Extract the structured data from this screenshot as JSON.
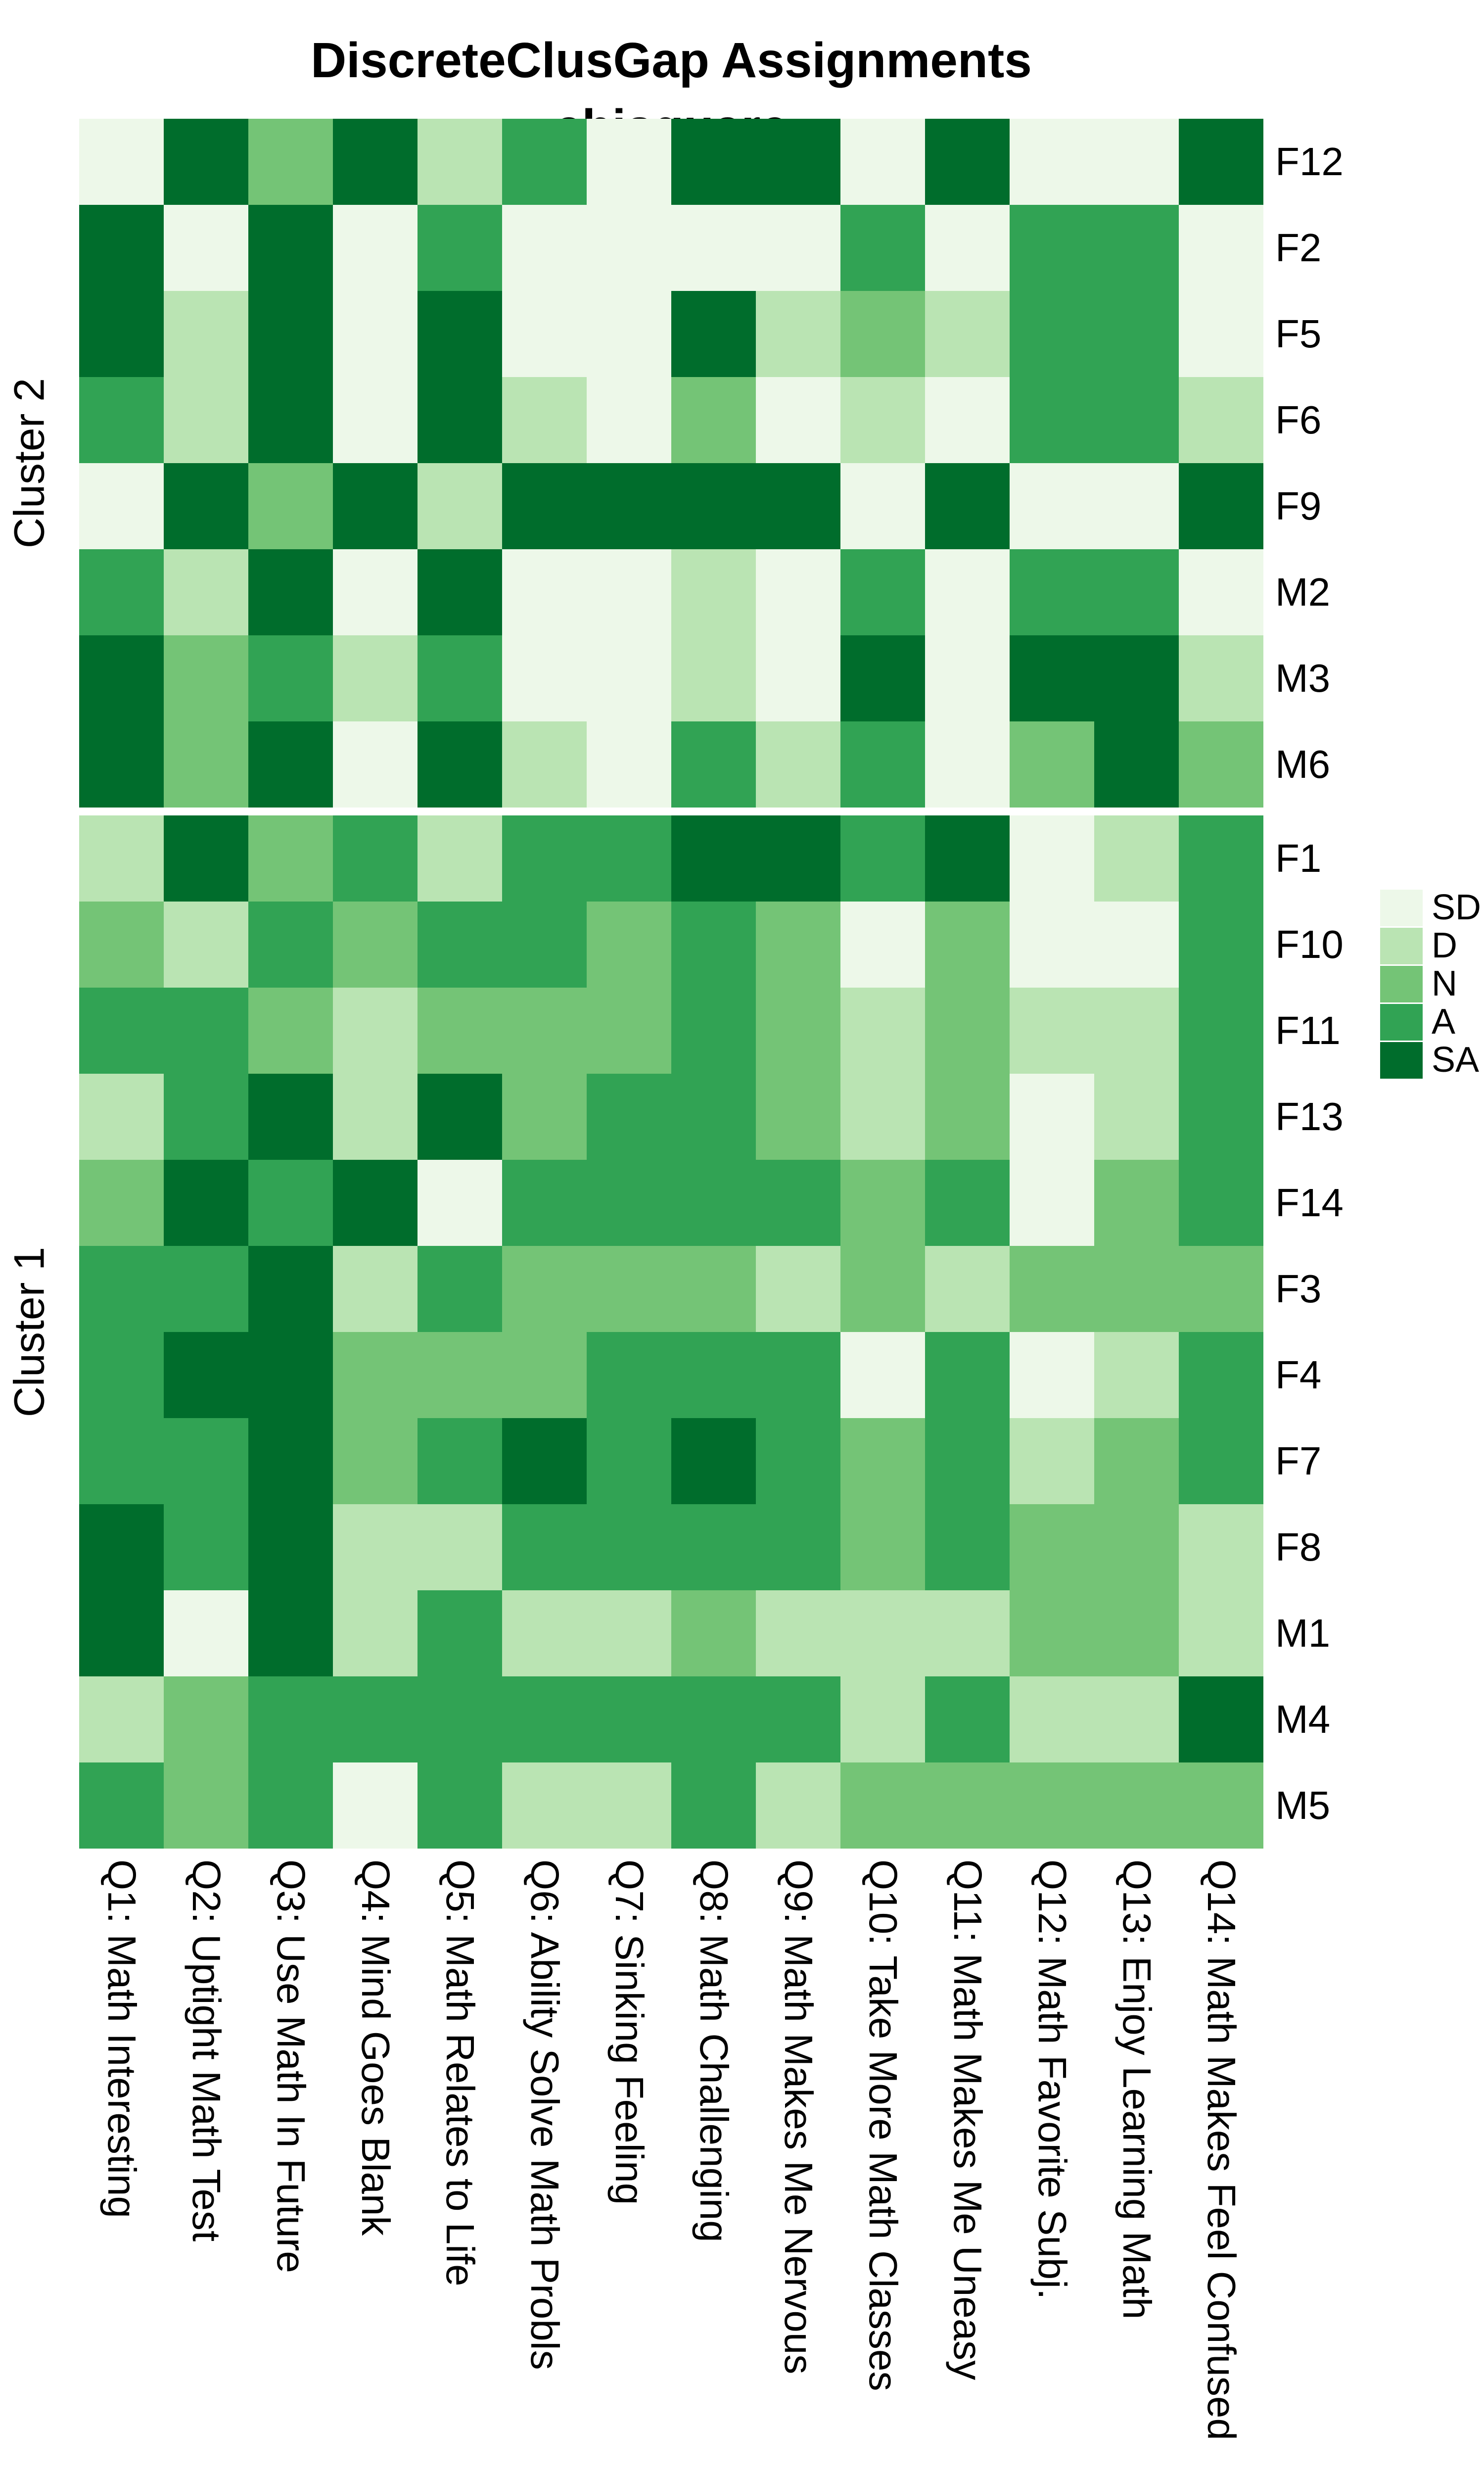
{
  "title": {
    "line1": "DiscreteClusGap Assignments",
    "line2": "chisquare"
  },
  "chart_data": {
    "type": "heatmap",
    "value_scale": "discrete Likert levels",
    "legend": {
      "position": "right",
      "levels": [
        {
          "code": "SD",
          "color": "#edf8e9"
        },
        {
          "code": "D",
          "color": "#bae4b3"
        },
        {
          "code": "N",
          "color": "#74c476"
        },
        {
          "code": "A",
          "color": "#31a354"
        },
        {
          "code": "SA",
          "color": "#006d2c"
        }
      ]
    },
    "columns": [
      "Q1: Math Interesting",
      "Q2: Uptight Math Test",
      "Q3: Use Math In Future",
      "Q4: Mind Goes Blank",
      "Q5: Math Relates to Life",
      "Q6: Ability Solve Math Probls",
      "Q7: Sinking Feeling",
      "Q8: Math Challenging",
      "Q9: Math Makes Me Nervous",
      "Q10: Take More Math Classes",
      "Q11: Math Makes Me Uneasy",
      "Q12: Math Favorite Subj.",
      "Q13: Enjoy Learning Math",
      "Q14: Math Makes Feel Confused"
    ],
    "clusters": [
      {
        "name": "Cluster 2",
        "rows": [
          {
            "id": "F12",
            "values": [
              "SD",
              "SA",
              "N",
              "SA",
              "D",
              "A",
              "SD",
              "SA",
              "SA",
              "SD",
              "SA",
              "SD",
              "SD",
              "SA"
            ]
          },
          {
            "id": "F2",
            "values": [
              "SA",
              "SD",
              "SA",
              "SD",
              "A",
              "SD",
              "SD",
              "SD",
              "SD",
              "A",
              "SD",
              "A",
              "A",
              "SD"
            ]
          },
          {
            "id": "F5",
            "values": [
              "SA",
              "D",
              "SA",
              "SD",
              "SA",
              "SD",
              "SD",
              "SA",
              "D",
              "N",
              "D",
              "A",
              "A",
              "SD"
            ]
          },
          {
            "id": "F6",
            "values": [
              "A",
              "D",
              "SA",
              "SD",
              "SA",
              "D",
              "SD",
              "N",
              "SD",
              "D",
              "SD",
              "A",
              "A",
              "D"
            ]
          },
          {
            "id": "F9",
            "values": [
              "SD",
              "SA",
              "N",
              "SA",
              "D",
              "SA",
              "SA",
              "SA",
              "SA",
              "SD",
              "SA",
              "SD",
              "SD",
              "SA"
            ]
          },
          {
            "id": "M2",
            "values": [
              "A",
              "D",
              "SA",
              "SD",
              "SA",
              "SD",
              "SD",
              "D",
              "SD",
              "A",
              "SD",
              "A",
              "A",
              "SD"
            ]
          },
          {
            "id": "M3",
            "values": [
              "SA",
              "N",
              "A",
              "D",
              "A",
              "SD",
              "SD",
              "D",
              "SD",
              "SA",
              "SD",
              "SA",
              "SA",
              "D"
            ]
          },
          {
            "id": "M6",
            "values": [
              "SA",
              "N",
              "SA",
              "SD",
              "SA",
              "D",
              "SD",
              "A",
              "D",
              "A",
              "SD",
              "N",
              "SA",
              "N"
            ]
          }
        ]
      },
      {
        "name": "Cluster 1",
        "rows": [
          {
            "id": "F1",
            "values": [
              "D",
              "SA",
              "N",
              "A",
              "D",
              "A",
              "A",
              "SA",
              "SA",
              "A",
              "SA",
              "SD",
              "D",
              "A"
            ]
          },
          {
            "id": "F10",
            "values": [
              "N",
              "D",
              "A",
              "N",
              "A",
              "A",
              "N",
              "A",
              "N",
              "SD",
              "N",
              "SD",
              "SD",
              "A"
            ]
          },
          {
            "id": "F11",
            "values": [
              "A",
              "A",
              "N",
              "D",
              "N",
              "N",
              "N",
              "A",
              "N",
              "D",
              "N",
              "D",
              "D",
              "A"
            ]
          },
          {
            "id": "F13",
            "values": [
              "D",
              "A",
              "SA",
              "D",
              "SA",
              "N",
              "A",
              "A",
              "N",
              "D",
              "N",
              "SD",
              "D",
              "A"
            ]
          },
          {
            "id": "F14",
            "values": [
              "N",
              "SA",
              "A",
              "SA",
              "SD",
              "A",
              "A",
              "A",
              "A",
              "N",
              "A",
              "SD",
              "N",
              "A"
            ]
          },
          {
            "id": "F3",
            "values": [
              "A",
              "A",
              "SA",
              "D",
              "A",
              "N",
              "N",
              "N",
              "D",
              "N",
              "D",
              "N",
              "N",
              "N"
            ]
          },
          {
            "id": "F4",
            "values": [
              "A",
              "SA",
              "SA",
              "N",
              "N",
              "N",
              "A",
              "A",
              "A",
              "SD",
              "A",
              "SD",
              "D",
              "A"
            ]
          },
          {
            "id": "F7",
            "values": [
              "A",
              "A",
              "SA",
              "N",
              "A",
              "SA",
              "A",
              "SA",
              "A",
              "N",
              "A",
              "D",
              "N",
              "A"
            ]
          },
          {
            "id": "F8",
            "values": [
              "SA",
              "A",
              "SA",
              "D",
              "D",
              "A",
              "A",
              "A",
              "A",
              "N",
              "A",
              "N",
              "N",
              "D"
            ]
          },
          {
            "id": "M1",
            "values": [
              "SA",
              "SD",
              "SA",
              "D",
              "A",
              "D",
              "D",
              "N",
              "D",
              "D",
              "D",
              "N",
              "N",
              "D"
            ]
          },
          {
            "id": "M4",
            "values": [
              "D",
              "N",
              "A",
              "A",
              "A",
              "A",
              "A",
              "A",
              "A",
              "D",
              "A",
              "D",
              "D",
              "SA"
            ]
          },
          {
            "id": "M5",
            "values": [
              "A",
              "N",
              "A",
              "SD",
              "A",
              "D",
              "D",
              "A",
              "D",
              "N",
              "N",
              "N",
              "N",
              "N"
            ]
          }
        ]
      }
    ]
  }
}
